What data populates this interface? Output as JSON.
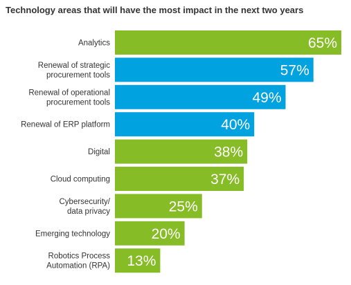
{
  "chart_data": {
    "type": "bar",
    "orientation": "horizontal",
    "title": "Technology areas that will have the most impact in the next two years",
    "xlabel": "",
    "ylabel": "",
    "xlim": [
      0,
      65
    ],
    "grid": false,
    "categories": [
      [
        "Analytics"
      ],
      [
        "Renewal of strategic",
        "procurement tools"
      ],
      [
        "Renewal of operational",
        "procurement tools"
      ],
      [
        "Renewal of ERP platform"
      ],
      [
        "Digital"
      ],
      [
        "Cloud computing"
      ],
      [
        "Cybersecurity/",
        "data privacy"
      ],
      [
        "Emerging technology"
      ],
      [
        "Robotics Process",
        "Automation (RPA)"
      ]
    ],
    "values": [
      65,
      57,
      49,
      40,
      38,
      37,
      25,
      20,
      13
    ],
    "value_labels": [
      "65%",
      "57%",
      "49%",
      "40%",
      "38%",
      "37%",
      "25%",
      "20%",
      "13%"
    ],
    "bar_colors": [
      "#86bc25",
      "#00a3e0",
      "#00a3e0",
      "#00a3e0",
      "#86bc25",
      "#86bc25",
      "#86bc25",
      "#86bc25",
      "#86bc25"
    ],
    "colors": {
      "green": "#86bc25",
      "blue": "#00a3e0",
      "value_text": "#ffffff",
      "label_text": "#333333"
    }
  }
}
